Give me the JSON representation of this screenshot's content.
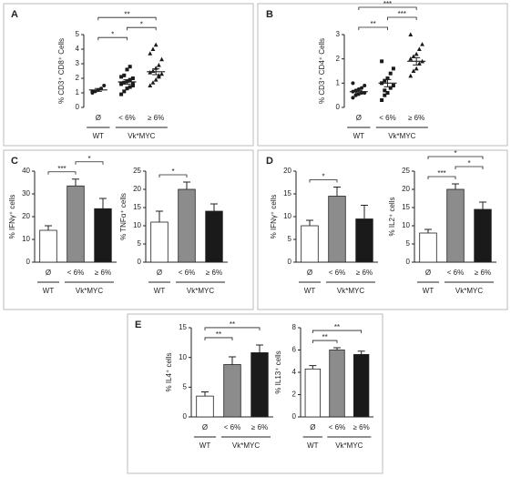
{
  "chart_data": [
    {
      "type": "dot",
      "panel": "A",
      "ylabel": "% CD3⁺ CD8⁺ Cells",
      "categories": [
        "Ø",
        "< 6%",
        "≥ 6%"
      ],
      "group_labels": [
        "WT",
        "Vk*MYC"
      ],
      "ylim": [
        0,
        5
      ],
      "yticks": [
        0,
        1,
        2,
        3,
        4,
        5
      ],
      "color": "#1a1a1a",
      "markers": [
        "circle",
        "square",
        "triangle"
      ],
      "points": [
        [
          1.0,
          1.1,
          1.2,
          1.3,
          1.5,
          1.1
        ],
        [
          0.9,
          1.1,
          1.3,
          1.4,
          1.5,
          1.6,
          1.7,
          1.8,
          1.9,
          2.0,
          2.1,
          2.2,
          2.6,
          2.8,
          1.6
        ],
        [
          1.5,
          1.7,
          1.9,
          2.1,
          2.3,
          2.4,
          2.5,
          2.7,
          2.9,
          3.3,
          3.7,
          4.0,
          4.3,
          2.2
        ]
      ],
      "values": [
        1.2,
        1.75,
        2.45
      ],
      "errors": [
        0.1,
        0.15,
        0.2
      ],
      "significance": [
        {
          "label": "*",
          "between": [
            0,
            1
          ]
        },
        {
          "label": "*",
          "between": [
            1,
            2
          ]
        },
        {
          "label": "**",
          "between": [
            0,
            2
          ]
        }
      ]
    },
    {
      "type": "dot",
      "panel": "B",
      "ylabel": "% CD3⁺ CD4⁺ Cells",
      "categories": [
        "Ø",
        "< 6%",
        "≥ 6%"
      ],
      "group_labels": [
        "WT",
        "Vk*MYC"
      ],
      "ylim": [
        0,
        3
      ],
      "yticks": [
        0,
        1,
        2,
        3
      ],
      "color": "#1a1a1a",
      "markers": [
        "circle",
        "square",
        "triangle"
      ],
      "points": [
        [
          0.4,
          0.5,
          0.55,
          0.6,
          0.6,
          0.65,
          0.7,
          0.75,
          0.8,
          0.9,
          1.0,
          0.5
        ],
        [
          0.3,
          0.5,
          0.6,
          0.8,
          0.9,
          1.0,
          1.1,
          1.2,
          1.4,
          1.6,
          1.9,
          0.7
        ],
        [
          1.3,
          1.5,
          1.6,
          1.8,
          1.9,
          2.0,
          2.1,
          2.2,
          2.4,
          2.6,
          3.0
        ]
      ],
      "values": [
        0.65,
        1.0,
        1.9
      ],
      "errors": [
        0.05,
        0.15,
        0.15
      ],
      "significance": [
        {
          "label": "**",
          "between": [
            0,
            1
          ]
        },
        {
          "label": "***",
          "between": [
            1,
            2
          ]
        },
        {
          "label": "***",
          "between": [
            0,
            2
          ]
        }
      ]
    },
    {
      "type": "bar",
      "panel": "C",
      "ylabel": "% IFNγ⁺ cells",
      "categories": [
        "Ø",
        "< 6%",
        "≥ 6%"
      ],
      "group_labels": [
        "WT",
        "Vk*MYC"
      ],
      "ylim": [
        0,
        40
      ],
      "yticks": [
        0,
        10,
        20,
        30,
        40
      ],
      "colors": [
        "#ffffff",
        "#8c8c8c",
        "#1a1a1a"
      ],
      "values": [
        14,
        33.5,
        23.5
      ],
      "errors": [
        2,
        3,
        4.5
      ],
      "significance": [
        {
          "label": "***",
          "between": [
            0,
            1
          ]
        },
        {
          "label": "*",
          "between": [
            1,
            2
          ]
        }
      ]
    },
    {
      "type": "bar",
      "ylabel": "% TNFα⁺ cells",
      "categories": [
        "Ø",
        "< 6%",
        "≥ 6%"
      ],
      "group_labels": [
        "WT",
        "Vk*MYC"
      ],
      "ylim": [
        0,
        25
      ],
      "yticks": [
        0,
        5,
        10,
        15,
        20,
        25
      ],
      "colors": [
        "#ffffff",
        "#8c8c8c",
        "#1a1a1a"
      ],
      "values": [
        11,
        20,
        14
      ],
      "errors": [
        3,
        2,
        2
      ],
      "significance": [
        {
          "label": "*",
          "between": [
            0,
            1
          ]
        }
      ]
    },
    {
      "type": "bar",
      "panel": "D",
      "ylabel": "% IFNγ⁺ cells",
      "categories": [
        "Ø",
        "< 6%",
        "≥ 6%"
      ],
      "group_labels": [
        "WT",
        "Vk*MYC"
      ],
      "ylim": [
        0,
        20
      ],
      "yticks": [
        0,
        5,
        10,
        15,
        20
      ],
      "colors": [
        "#ffffff",
        "#8c8c8c",
        "#1a1a1a"
      ],
      "values": [
        8,
        14.5,
        9.5
      ],
      "errors": [
        1.2,
        2,
        3
      ],
      "significance": [
        {
          "label": "*",
          "between": [
            0,
            1
          ]
        }
      ]
    },
    {
      "type": "bar",
      "ylabel": "% IL2⁺ cells",
      "categories": [
        "Ø",
        "< 6%",
        "≥ 6%"
      ],
      "group_labels": [
        "WT",
        "Vk*MYC"
      ],
      "ylim": [
        0,
        25
      ],
      "yticks": [
        0,
        5,
        10,
        15,
        20,
        25
      ],
      "colors": [
        "#ffffff",
        "#8c8c8c",
        "#1a1a1a"
      ],
      "values": [
        8,
        20,
        14.5
      ],
      "errors": [
        1,
        1.5,
        2
      ],
      "significance": [
        {
          "label": "***",
          "between": [
            0,
            1
          ]
        },
        {
          "label": "*",
          "between": [
            1,
            2
          ]
        },
        {
          "label": "*",
          "between": [
            0,
            2
          ]
        }
      ]
    },
    {
      "type": "bar",
      "panel": "E",
      "ylabel": "% IL4⁺ cells",
      "categories": [
        "Ø",
        "< 6%",
        "≥ 6%"
      ],
      "group_labels": [
        "WT",
        "Vk*MYC"
      ],
      "ylim": [
        0,
        15
      ],
      "yticks": [
        0,
        5,
        10,
        15
      ],
      "colors": [
        "#ffffff",
        "#8c8c8c",
        "#1a1a1a"
      ],
      "values": [
        3.5,
        8.8,
        10.8
      ],
      "errors": [
        0.7,
        1.3,
        1.3
      ],
      "significance": [
        {
          "label": "**",
          "between": [
            0,
            1
          ]
        },
        {
          "label": "**",
          "between": [
            0,
            2
          ]
        }
      ]
    },
    {
      "type": "bar",
      "ylabel": "% IL13⁺ cells",
      "categories": [
        "Ø",
        "< 6%",
        "≥ 6%"
      ],
      "group_labels": [
        "WT",
        "Vk*MYC"
      ],
      "ylim": [
        0,
        8
      ],
      "yticks": [
        0,
        2,
        4,
        6,
        8
      ],
      "colors": [
        "#ffffff",
        "#8c8c8c",
        "#1a1a1a"
      ],
      "values": [
        4.3,
        6,
        5.6
      ],
      "errors": [
        0.3,
        0.2,
        0.3
      ],
      "significance": [
        {
          "label": "**",
          "between": [
            0,
            1
          ]
        },
        {
          "label": "**",
          "between": [
            0,
            2
          ]
        }
      ]
    }
  ]
}
